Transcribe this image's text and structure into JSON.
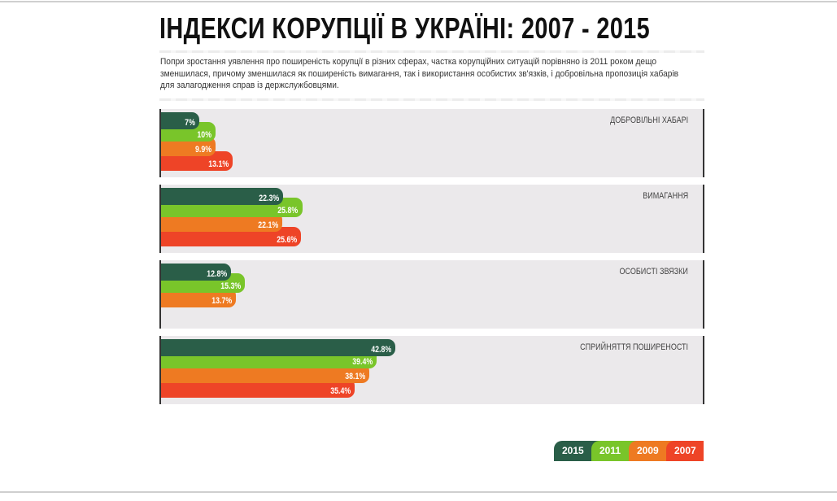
{
  "title": "ІНДЕКСИ КОРУПЦІЇ В УКРАЇНІ: 2007 - 2015",
  "description_lines": [
    "Попри зростання уявлення про поширеність корупції в різних сферах, частка корупційних ситуацій порівняно із 2011 роком дещо",
    "зменшилася, причому зменшилася як поширеність вимагання, так і використання особистих зв'язків, і добровільна пропозиція хабарів",
    "для залагодження справ із держслужбовцями."
  ],
  "colors": {
    "2015": "#2a5e48",
    "2011": "#79c52a",
    "2009": "#ee7a22",
    "2007": "#ee4427",
    "panel": "#ebe9eb"
  },
  "legend": [
    "2015",
    "2011",
    "2009",
    "2007"
  ],
  "chart_data": {
    "type": "bar",
    "orientation": "horizontal",
    "categories": [
      "ДОБРОВІЛЬНІ ХАБАРІ",
      "ВИМАГАННЯ",
      "ОСОБИСТІ ЗВЯЗКИ",
      "СПРИЙНЯТТЯ ПОШИРЕНОСТІ"
    ],
    "series": [
      {
        "name": "2015",
        "values": [
          7,
          22.3,
          12.8,
          42.8
        ],
        "labels": [
          "7%",
          "22.3%",
          "12.8%",
          "42.8%"
        ]
      },
      {
        "name": "2011",
        "values": [
          10,
          25.8,
          15.3,
          39.4
        ],
        "labels": [
          "10%",
          "25.8%",
          "15.3%",
          "39.4%"
        ]
      },
      {
        "name": "2009",
        "values": [
          9.9,
          22.1,
          13.7,
          38.1
        ],
        "labels": [
          "9.9%",
          "22.1%",
          "13.7%",
          "38.1%"
        ]
      },
      {
        "name": "2007",
        "values": [
          13.1,
          25.6,
          null,
          35.4
        ],
        "labels": [
          "13.1%",
          "25.6%",
          null,
          "35.4%"
        ]
      }
    ],
    "unit": "%",
    "legend_position": "bottom-right",
    "grid": false
  }
}
